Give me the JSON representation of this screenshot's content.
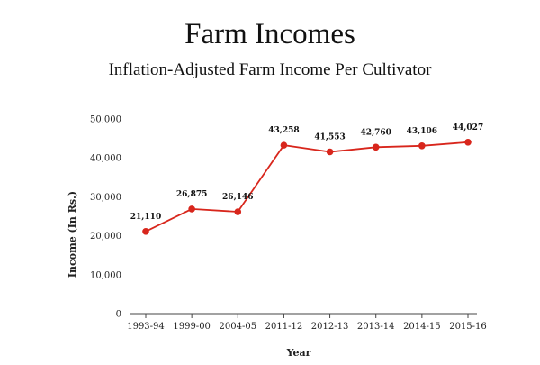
{
  "chart_data": {
    "type": "line",
    "title": "Farm Incomes",
    "subtitle": "Inflation-Adjusted Farm Income Per Cultivator",
    "xlabel": "Year",
    "ylabel": "Income (In Rs.)",
    "categories": [
      "1993-94",
      "1999-00",
      "2004-05",
      "2011-12",
      "2012-13",
      "2013-14",
      "2014-15",
      "2015-16"
    ],
    "series": [
      {
        "values": [
          21110,
          26875,
          26146,
          43258,
          41553,
          42760,
          43106,
          44027
        ],
        "labels": [
          "21,110",
          "26,875",
          "26,146",
          "43,258",
          "41,553",
          "42,760",
          "43,106",
          "44,027"
        ]
      }
    ],
    "ylim": [
      0,
      50000
    ],
    "yticks": [
      0,
      10000,
      20000,
      30000,
      40000,
      50000
    ],
    "ytick_labels": [
      "0",
      "10,000",
      "20,000",
      "30,000",
      "40,000",
      "50,000"
    ],
    "grid": false,
    "colors": {
      "line": "#d8261c",
      "marker": "#d8261c",
      "axis": "#444444"
    }
  }
}
